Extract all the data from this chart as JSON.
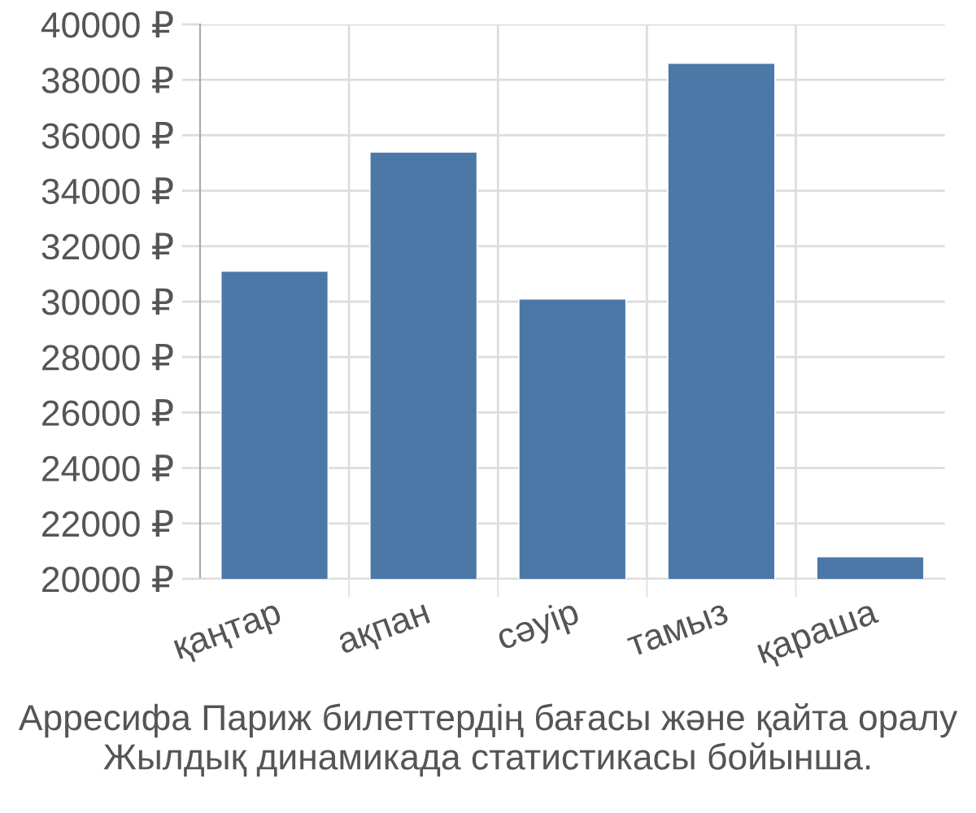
{
  "chart_data": {
    "type": "bar",
    "categories": [
      "қаңтар",
      "ақпан",
      "сәуір",
      "тамыз",
      "қараша"
    ],
    "values": [
      31100,
      35400,
      30100,
      38600,
      20800
    ],
    "color": "#4c78a8",
    "ylim": [
      20000,
      40000
    ],
    "yticks": [
      {
        "value": 20000,
        "label": "20000 ₽"
      },
      {
        "value": 22000,
        "label": "22000 ₽"
      },
      {
        "value": 24000,
        "label": "24000 ₽"
      },
      {
        "value": 26000,
        "label": "26000 ₽"
      },
      {
        "value": 28000,
        "label": "28000 ₽"
      },
      {
        "value": 30000,
        "label": "30000 ₽"
      },
      {
        "value": 32000,
        "label": "32000 ₽"
      },
      {
        "value": 34000,
        "label": "34000 ₽"
      },
      {
        "value": 36000,
        "label": "36000 ₽"
      },
      {
        "value": 38000,
        "label": "38000 ₽"
      },
      {
        "value": 40000,
        "label": "40000 ₽"
      }
    ],
    "grid": true,
    "annotations": [
      "Арресифа Париж билеттердің бағасы және қайта оралу Жылдық динамикада статистикасы бойынша."
    ]
  }
}
